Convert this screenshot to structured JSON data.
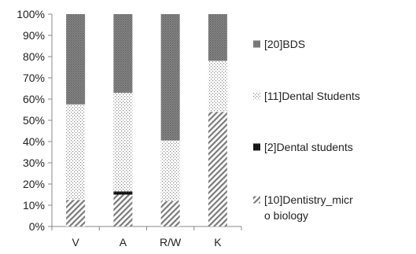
{
  "chart_data": {
    "type": "bar",
    "stacked": true,
    "percent_stacked": true,
    "title": "",
    "xlabel": "",
    "ylabel": "",
    "ylim": [
      0,
      100
    ],
    "yticks": [
      "0%",
      "10%",
      "20%",
      "30%",
      "40%",
      "50%",
      "60%",
      "70%",
      "80%",
      "90%",
      "100%"
    ],
    "categories": [
      "V",
      "A",
      "R/W",
      "K"
    ],
    "series": [
      {
        "name": "[10]Dentistry_micr o biology",
        "legend_lines": [
          "[10]Dentistry_micr",
          "o biology"
        ],
        "pattern": "diagonal",
        "values": [
          12.5,
          15,
          12,
          54
        ]
      },
      {
        "name": "[2]Dental students",
        "legend_lines": [
          "[2]Dental students"
        ],
        "pattern": "solid-dark",
        "values": [
          0,
          1.5,
          0,
          0
        ]
      },
      {
        "name": "[11]Dental Students",
        "legend_lines": [
          "[11]Dental Students"
        ],
        "pattern": "dots",
        "values": [
          45,
          46.5,
          28.5,
          24
        ]
      },
      {
        "name": "[20]BDS",
        "legend_lines": [
          "[20]BDS"
        ],
        "pattern": "dense",
        "values": [
          42.5,
          37,
          59.5,
          22
        ]
      }
    ],
    "legend_position": "right",
    "grid": false
  }
}
